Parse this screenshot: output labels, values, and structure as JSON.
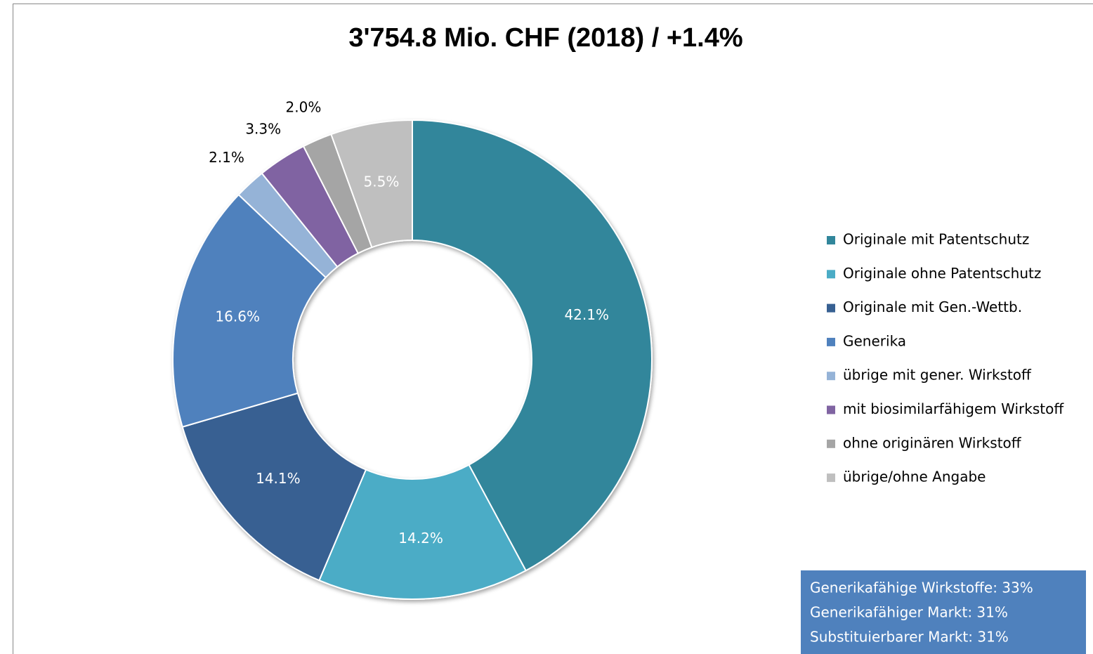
{
  "chart_data": {
    "type": "donut",
    "title": "3'754.8 Mio. CHF (2018) / +1.4%",
    "categories": [
      "Originale mit Patentschutz",
      "Originale ohne Patentschutz",
      "Originale mit Gen.-Wettb.",
      "Generika",
      "übrige mit gener. Wirkstoff",
      "mit biosimilarfähigem Wirkstoff",
      "ohne originären Wirkstoff",
      "übrige/ohne Angabe"
    ],
    "values": [
      42.1,
      14.2,
      14.1,
      16.6,
      2.1,
      3.3,
      2.0,
      5.5
    ],
    "value_labels": [
      "42.1%",
      "14.2%",
      "14.1%",
      "16.6%",
      "2.1%",
      "3.3%",
      "2.0%",
      "5.5%"
    ],
    "colors": [
      "#31869b",
      "#4bacc6",
      "#376092",
      "#4f81bd",
      "#95b3d7",
      "#8064a2",
      "#a5a5a5",
      "#bfbfbf"
    ],
    "legend": "right",
    "textbox": [
      "Generikafähige Wirkstoffe: 33%",
      "Generikafähiger Markt: 31%",
      "Substituierbarer Markt: 31%"
    ]
  }
}
